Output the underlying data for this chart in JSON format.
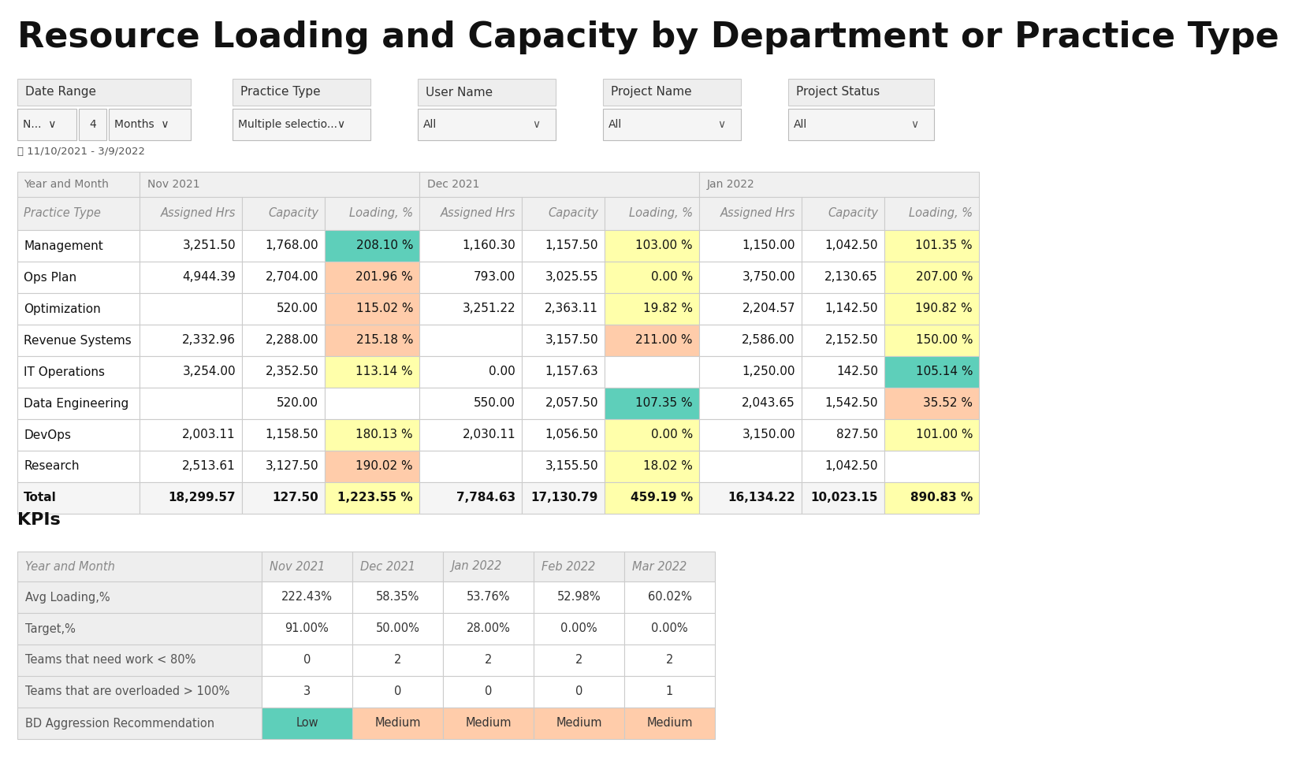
{
  "title": "Resource Loading and Capacity by Department or Practice Type",
  "title_fontsize": 32,
  "date_range": "11/10/2021 - 3/9/2022",
  "main_table": {
    "month_headers": [
      "Nov 2021",
      "Dec 2021",
      "Jan 2022"
    ],
    "col_headers": [
      "Practice Type",
      "Assigned Hrs",
      "Capacity",
      "Loading, %",
      "Assigned Hrs",
      "Capacity",
      "Loading, %",
      "Assigned Hrs",
      "Capacity",
      "Loading, %"
    ],
    "rows": [
      {
        "name": "Management",
        "nov": [
          "3,251.50",
          "1,768.00",
          "208.10 %"
        ],
        "dec": [
          "1,160.30",
          "1,157.50",
          "103.00 %"
        ],
        "jan": [
          "1,150.00",
          "1,042.50",
          "101.35 %"
        ]
      },
      {
        "name": "Ops Plan",
        "nov": [
          "4,944.39",
          "2,704.00",
          "201.96 %"
        ],
        "dec": [
          "793.00",
          "3,025.55",
          "0.00 %"
        ],
        "jan": [
          "3,750.00",
          "2,130.65",
          "207.00 %"
        ]
      },
      {
        "name": "Optimization",
        "nov": [
          "",
          "520.00",
          "115.02 %"
        ],
        "dec": [
          "3,251.22",
          "2,363.11",
          "19.82 %"
        ],
        "jan": [
          "2,204.57",
          "1,142.50",
          "190.82 %"
        ]
      },
      {
        "name": "Revenue Systems",
        "nov": [
          "2,332.96",
          "2,288.00",
          "215.18 %"
        ],
        "dec": [
          "",
          "3,157.50",
          "211.00 %"
        ],
        "jan": [
          "2,586.00",
          "2,152.50",
          "150.00 %"
        ]
      },
      {
        "name": "IT Operations",
        "nov": [
          "3,254.00",
          "2,352.50",
          "113.14 %"
        ],
        "dec": [
          "0.00",
          "1,157.63",
          ""
        ],
        "jan": [
          "1,250.00",
          "142.50",
          "105.14 %"
        ]
      },
      {
        "name": "Data Engineering",
        "nov": [
          "",
          "520.00",
          ""
        ],
        "dec": [
          "550.00",
          "2,057.50",
          "107.35 %"
        ],
        "jan": [
          "2,043.65",
          "1,542.50",
          "35.52 %"
        ]
      },
      {
        "name": "DevOps",
        "nov": [
          "2,003.11",
          "1,158.50",
          "180.13 %"
        ],
        "dec": [
          "2,030.11",
          "1,056.50",
          "0.00 %"
        ],
        "jan": [
          "3,150.00",
          "827.50",
          "101.00 %"
        ]
      },
      {
        "name": "Research",
        "nov": [
          "2,513.61",
          "3,127.50",
          "190.02 %"
        ],
        "dec": [
          "",
          "3,155.50",
          "18.02 %"
        ],
        "jan": [
          "",
          "1,042.50",
          ""
        ]
      },
      {
        "name": "Total",
        "nov": [
          "18,299.57",
          "127.50",
          "1,223.55 %"
        ],
        "dec": [
          "7,784.63",
          "17,130.79",
          "459.19 %"
        ],
        "jan": [
          "16,134.22",
          "10,023.15",
          "890.83 %"
        ]
      }
    ],
    "loading_colors": {
      "Management": {
        "nov": "#5ecfba",
        "dec": "#ffffaa",
        "jan": "#ffffaa"
      },
      "Ops Plan": {
        "nov": "#ffccaa",
        "dec": "#ffffaa",
        "jan": "#ffffaa"
      },
      "Optimization": {
        "nov": "#ffccaa",
        "dec": "#ffffaa",
        "jan": "#ffffaa"
      },
      "Revenue Systems": {
        "nov": "#ffccaa",
        "dec": "#ffccaa",
        "jan": "#ffffaa"
      },
      "IT Operations": {
        "nov": "#ffffaa",
        "dec": "",
        "jan": "#5ecfba"
      },
      "Data Engineering": {
        "nov": "",
        "dec": "#5ecfba",
        "jan": "#ffccaa"
      },
      "DevOps": {
        "nov": "#ffffaa",
        "dec": "#ffffaa",
        "jan": "#ffffaa"
      },
      "Research": {
        "nov": "#ffccaa",
        "dec": "#ffffaa",
        "jan": ""
      },
      "Total": {
        "nov": "#ffffaa",
        "dec": "#ffffaa",
        "jan": "#ffffaa"
      }
    }
  },
  "kpi_table": {
    "headers": [
      "Year and Month",
      "Nov 2021",
      "Dec 2021",
      "Jan 2022",
      "Feb 2022",
      "Mar 2022"
    ],
    "rows": [
      {
        "label": "Avg Loading,%",
        "values": [
          "222.43%",
          "58.35%",
          "53.76%",
          "52.98%",
          "60.02%"
        ]
      },
      {
        "label": "Target,%",
        "values": [
          "91.00%",
          "50.00%",
          "28.00%",
          "0.00%",
          "0.00%"
        ]
      },
      {
        "label": "Teams that need work < 80%",
        "values": [
          "0",
          "2",
          "2",
          "2",
          "2"
        ]
      },
      {
        "label": "Teams that are overloaded > 100%",
        "values": [
          "3",
          "0",
          "0",
          "0",
          "1"
        ]
      },
      {
        "label": "BD Aggression Recommendation",
        "values": [
          "Low",
          "Medium",
          "Medium",
          "Medium",
          "Medium"
        ]
      }
    ],
    "bd_colors": [
      "#5ecfba",
      "#ffccaa",
      "#ffccaa",
      "#ffccaa",
      "#ffccaa"
    ]
  },
  "bg_color": "#ffffff",
  "border_color": "#cccccc"
}
